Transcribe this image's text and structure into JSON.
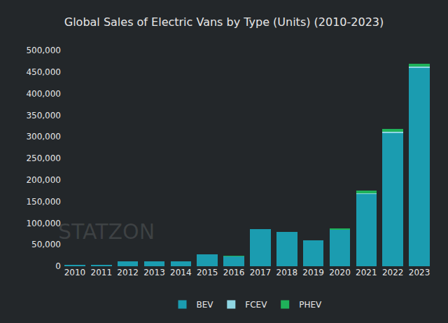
{
  "chart_data": {
    "type": "bar",
    "title": "Global Sales of Electric Vans by Type (Units) (2010-2023)",
    "annotations": [
      "STATZON"
    ],
    "categories": [
      "2010",
      "2011",
      "2012",
      "2013",
      "2014",
      "2015",
      "2016",
      "2017",
      "2018",
      "2019",
      "2020",
      "2021",
      "2022",
      "2023"
    ],
    "series": [
      {
        "name": "BEV",
        "color": "#1b9cb0",
        "values": [
          2000,
          3500,
          11000,
          11000,
          11000,
          28000,
          23000,
          86000,
          80000,
          60000,
          85000,
          168000,
          310000,
          460000
        ]
      },
      {
        "name": "FCEV",
        "color": "#8fd6e3",
        "values": [
          0,
          0,
          0,
          0,
          0,
          0,
          0,
          0,
          0,
          0,
          0,
          1000,
          1500,
          2500
        ]
      },
      {
        "name": "PHEV",
        "color": "#1fb25a",
        "values": [
          0,
          0,
          0,
          0,
          0,
          0,
          500,
          0,
          0,
          0,
          2000,
          7000,
          7500,
          6500
        ]
      }
    ],
    "stacked": true,
    "ylim": [
      0,
      500000
    ],
    "yticks": [
      0,
      {
        "value": 50000,
        "label": "50,000"
      },
      {
        "value": 100000,
        "label": "100,000"
      },
      {
        "value": 150000,
        "label": "150,000"
      },
      {
        "value": 200000,
        "label": "200,000"
      },
      {
        "value": 250000,
        "label": "250,000"
      },
      {
        "value": 300000,
        "label": "300,000"
      },
      {
        "value": 350000,
        "label": "350,000"
      },
      {
        "value": 400000,
        "label": "400,000"
      },
      {
        "value": 450000,
        "label": "450,000"
      },
      {
        "value": 500000,
        "label": "500,000"
      }
    ],
    "grid": false,
    "legend": "bottom"
  }
}
